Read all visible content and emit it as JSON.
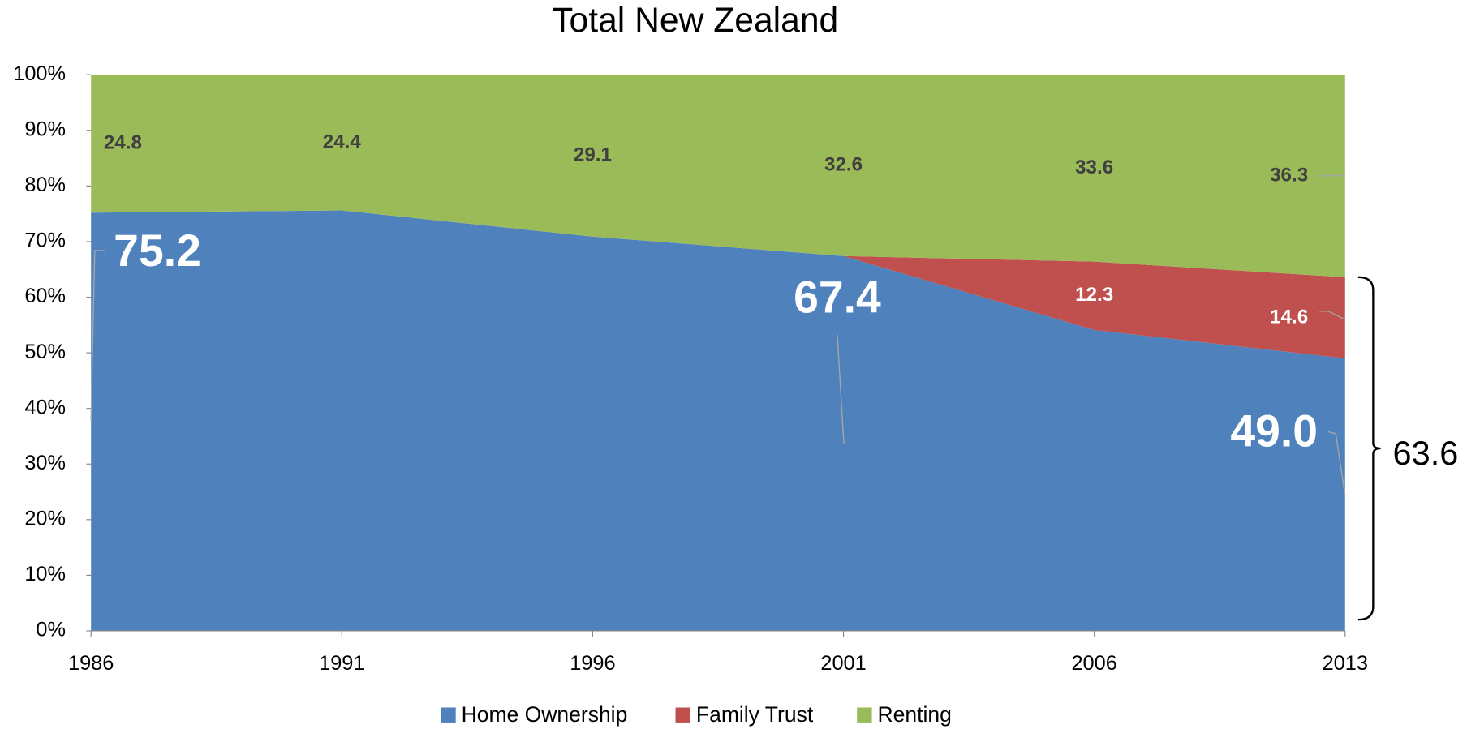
{
  "chart_data": {
    "type": "area",
    "stacked": true,
    "title": "Total New Zealand",
    "categories": [
      "1986",
      "1991",
      "1996",
      "2001",
      "2006",
      "2013"
    ],
    "series": [
      {
        "name": "Home Ownership",
        "color": "#4f81bd",
        "values": [
          75.2,
          75.6,
          70.9,
          67.4,
          54.1,
          49.0
        ],
        "value_labels": [
          "75.2",
          null,
          null,
          "67.4",
          null,
          "49.0"
        ]
      },
      {
        "name": "Family Trust",
        "color": "#c0504d",
        "values": [
          null,
          null,
          null,
          0,
          12.3,
          14.6
        ],
        "value_labels": [
          null,
          null,
          null,
          null,
          "12.3",
          "14.6"
        ]
      },
      {
        "name": "Renting",
        "color": "#9bbb59",
        "values": [
          24.8,
          24.4,
          29.1,
          32.6,
          33.6,
          36.3
        ],
        "value_labels": [
          "24.8",
          "24.4",
          "29.1",
          "32.6",
          "33.6",
          "36.3"
        ]
      }
    ],
    "ylim": [
      0,
      100
    ],
    "yticks": [
      {
        "value": 0,
        "label": "0%"
      },
      {
        "value": 10,
        "label": "10%"
      },
      {
        "value": 20,
        "label": "20%"
      },
      {
        "value": 30,
        "label": "30%"
      },
      {
        "value": 40,
        "label": "40%"
      },
      {
        "value": 50,
        "label": "50%"
      },
      {
        "value": 60,
        "label": "60%"
      },
      {
        "value": 70,
        "label": "70%"
      },
      {
        "value": 80,
        "label": "80%"
      },
      {
        "value": 90,
        "label": "90%"
      },
      {
        "value": 100,
        "label": "100%"
      }
    ],
    "grid": false,
    "legend": "bottom",
    "annotations": [
      {
        "label": "63.6"
      }
    ]
  }
}
